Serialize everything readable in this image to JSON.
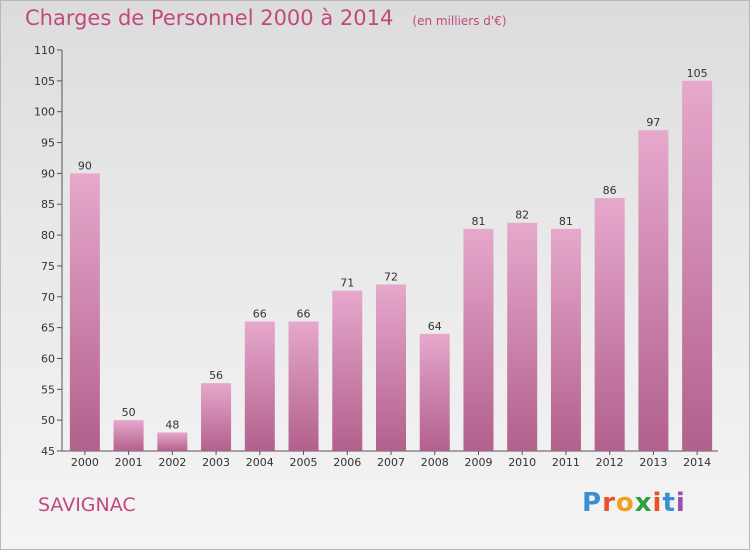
{
  "header": {
    "title": "Charges de Personnel 2000 à 2014",
    "subtitle": "(en milliers d'€)"
  },
  "footer": {
    "place": "SAVIGNAC",
    "logo": "Proxiti"
  },
  "colors": {
    "bar_top": "#e6a8cc",
    "bar_bottom": "#b2608c",
    "accent": "#c2497f"
  },
  "chart_data": {
    "type": "bar",
    "categories": [
      "2000",
      "2001",
      "2002",
      "2003",
      "2004",
      "2005",
      "2006",
      "2007",
      "2008",
      "2009",
      "2010",
      "2011",
      "2012",
      "2013",
      "2014"
    ],
    "values": [
      90,
      50,
      48,
      56,
      66,
      66,
      71,
      72,
      64,
      81,
      82,
      81,
      86,
      97,
      105
    ],
    "ylim": [
      45,
      110
    ],
    "yticks": [
      45,
      50,
      55,
      60,
      65,
      70,
      75,
      80,
      85,
      90,
      95,
      100,
      105,
      110
    ],
    "grid": false,
    "legend": "none",
    "title": "Charges de Personnel 2000 à 2014",
    "subtitle": "(en milliers d'€)"
  }
}
